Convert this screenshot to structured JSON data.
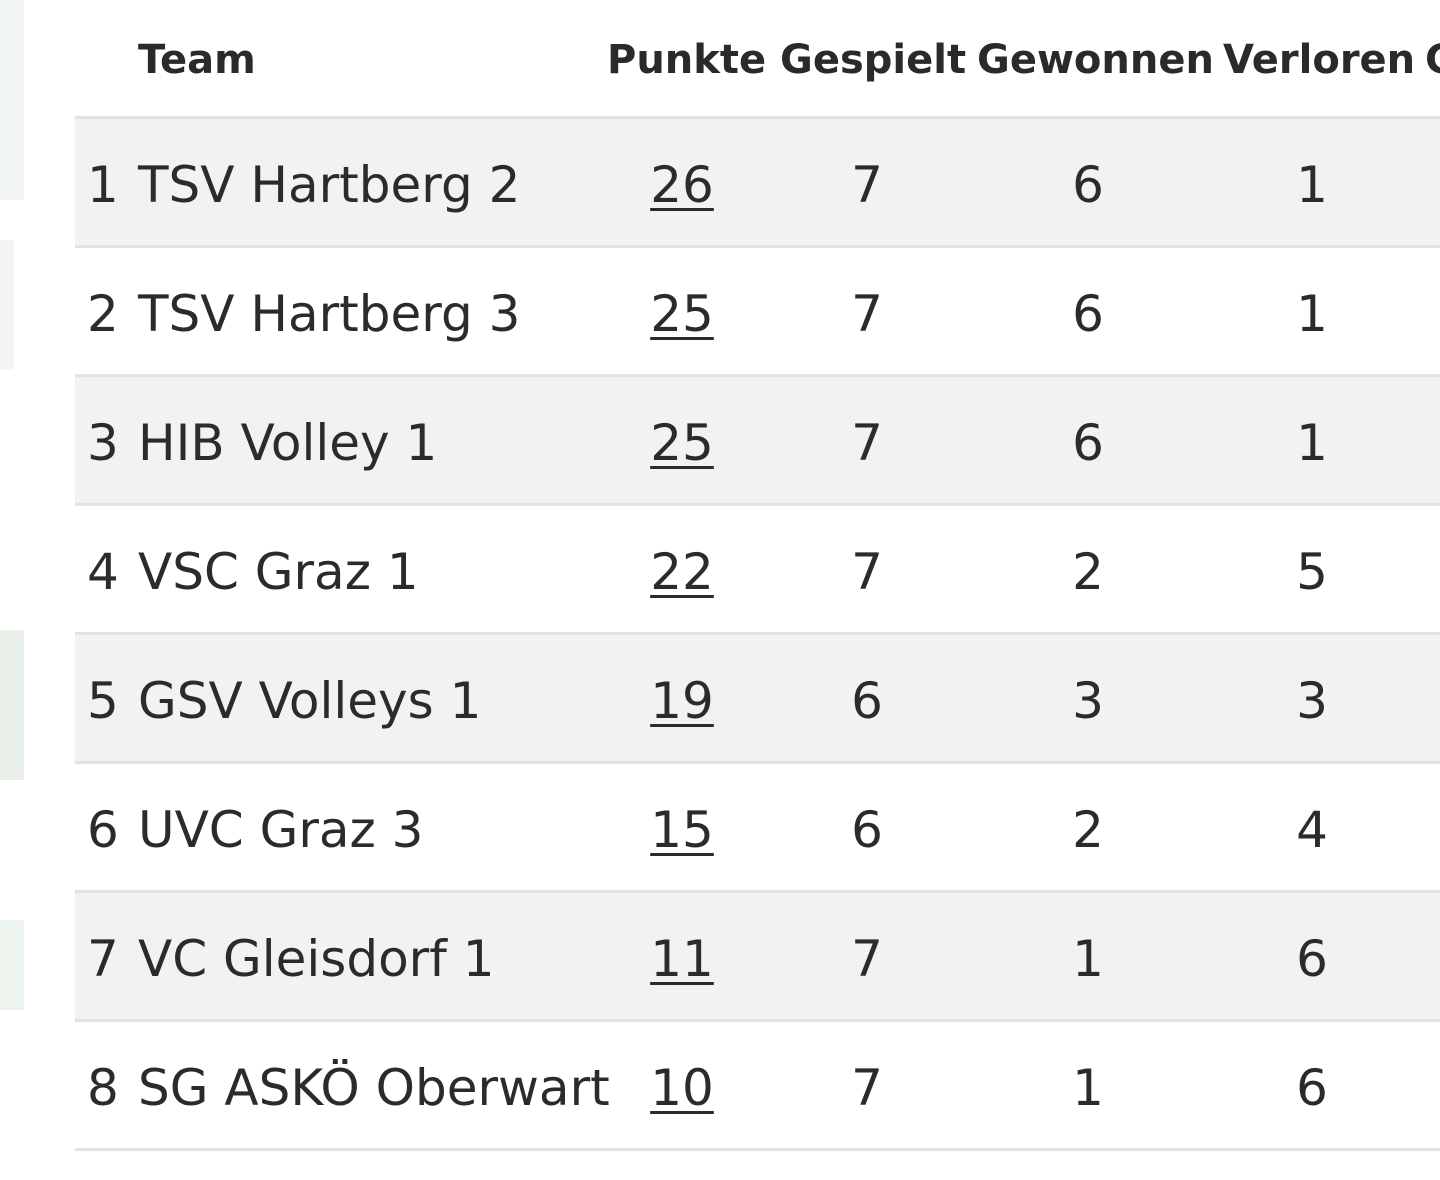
{
  "table": {
    "headers": {
      "rank": "",
      "team": "Team",
      "punkte": "Punkte",
      "gespielt": "Gespielt",
      "gewonnen": "Gewonnen",
      "verloren": "Verloren",
      "next": "G"
    },
    "rows": [
      {
        "rank": "1",
        "team": "TSV Hartberg 2",
        "punkte": "26",
        "gespielt": "7",
        "gewonnen": "6",
        "verloren": "1"
      },
      {
        "rank": "2",
        "team": "TSV Hartberg 3",
        "punkte": "25",
        "gespielt": "7",
        "gewonnen": "6",
        "verloren": "1"
      },
      {
        "rank": "3",
        "team": "HIB Volley 1",
        "punkte": "25",
        "gespielt": "7",
        "gewonnen": "6",
        "verloren": "1"
      },
      {
        "rank": "4",
        "team": "VSC Graz 1",
        "punkte": "22",
        "gespielt": "7",
        "gewonnen": "2",
        "verloren": "5"
      },
      {
        "rank": "5",
        "team": "GSV Volleys 1",
        "punkte": "19",
        "gespielt": "6",
        "gewonnen": "3",
        "verloren": "3"
      },
      {
        "rank": "6",
        "team": "UVC Graz 3",
        "punkte": "15",
        "gespielt": "6",
        "gewonnen": "2",
        "verloren": "4"
      },
      {
        "rank": "7",
        "team": "VC Gleisdorf 1",
        "punkte": "11",
        "gespielt": "7",
        "gewonnen": "1",
        "verloren": "6"
      },
      {
        "rank": "8",
        "team": "SG ASKÖ Oberwart",
        "punkte": "10",
        "gespielt": "7",
        "gewonnen": "1",
        "verloren": "6"
      }
    ]
  },
  "colors": {
    "row_alt": "#f2f2f2",
    "divider": "#e2e2e2",
    "text": "#2b2b2b"
  }
}
